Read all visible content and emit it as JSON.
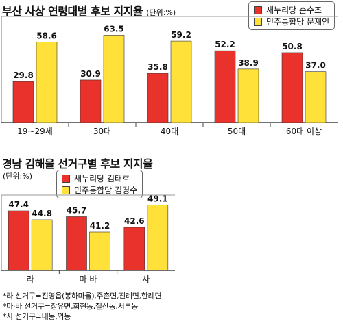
{
  "chart_data": [
    {
      "type": "bar",
      "title": "부산 사상 연령대별 후보 지지율",
      "unit": "(단위:%)",
      "categories": [
        "19~29세",
        "30대",
        "40대",
        "50대",
        "60대 이상"
      ],
      "series": [
        {
          "name": "새누리당 손수조",
          "values": [
            29.8,
            30.9,
            35.8,
            52.2,
            50.8
          ]
        },
        {
          "name": "민주통합당 문재인",
          "values": [
            58.6,
            63.5,
            59.2,
            38.9,
            37.0
          ]
        }
      ],
      "value_labels": [
        [
          "29.8",
          "30.9",
          "35.8",
          "52.2",
          "50.8"
        ],
        [
          "58.6",
          "63.5",
          "59.2",
          "38.9",
          "37.0"
        ]
      ],
      "ylim": [
        0,
        70
      ],
      "legend_position": "top-right"
    },
    {
      "type": "bar",
      "title": "경남 김해을 선거구별 후보 지지율",
      "unit": "(단위:%)",
      "categories": [
        "라",
        "마·바",
        "사"
      ],
      "series": [
        {
          "name": "새누리당 김태호",
          "values": [
            47.4,
            45.7,
            42.6
          ]
        },
        {
          "name": "민주통합당 김경수",
          "values": [
            44.8,
            41.2,
            49.1
          ]
        }
      ],
      "value_labels": [
        [
          "47.4",
          "45.7",
          "42.6"
        ],
        [
          "44.8",
          "41.2",
          "49.1"
        ]
      ],
      "ylim": [
        30,
        52
      ],
      "legend_position": "top-left"
    }
  ],
  "colors": {
    "series1": "#e8322b",
    "series2": "#ffe13a"
  },
  "notes": [
    "*라 선거구=진영읍(봉하마을),주촌면,진례면,한례면",
    "*마·바 선거구=장유면,회현동,칠산동,서부동",
    "*사 선거구=내동,외동"
  ]
}
